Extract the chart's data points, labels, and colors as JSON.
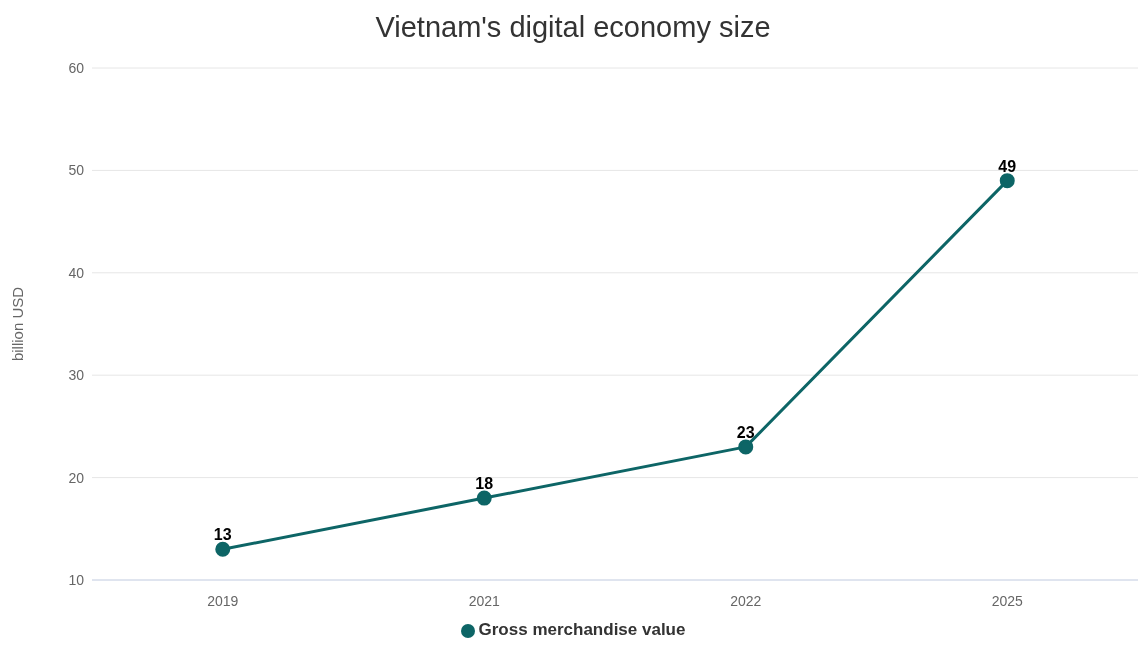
{
  "chart_data": {
    "type": "line",
    "title": "Vietnam's digital economy size",
    "ylabel": "billion USD",
    "categories": [
      "2019",
      "2021",
      "2022",
      "2025"
    ],
    "series": [
      {
        "name": "Gross merchandise value",
        "color": "#0d6566",
        "values": [
          13,
          18,
          23,
          49
        ]
      }
    ],
    "ylim": [
      10,
      60
    ],
    "yticks": [
      10,
      20,
      30,
      40,
      50,
      60
    ],
    "grid": "y",
    "legend": "bottom",
    "marker": "circle",
    "line_style": "solid",
    "data_labels": true
  }
}
